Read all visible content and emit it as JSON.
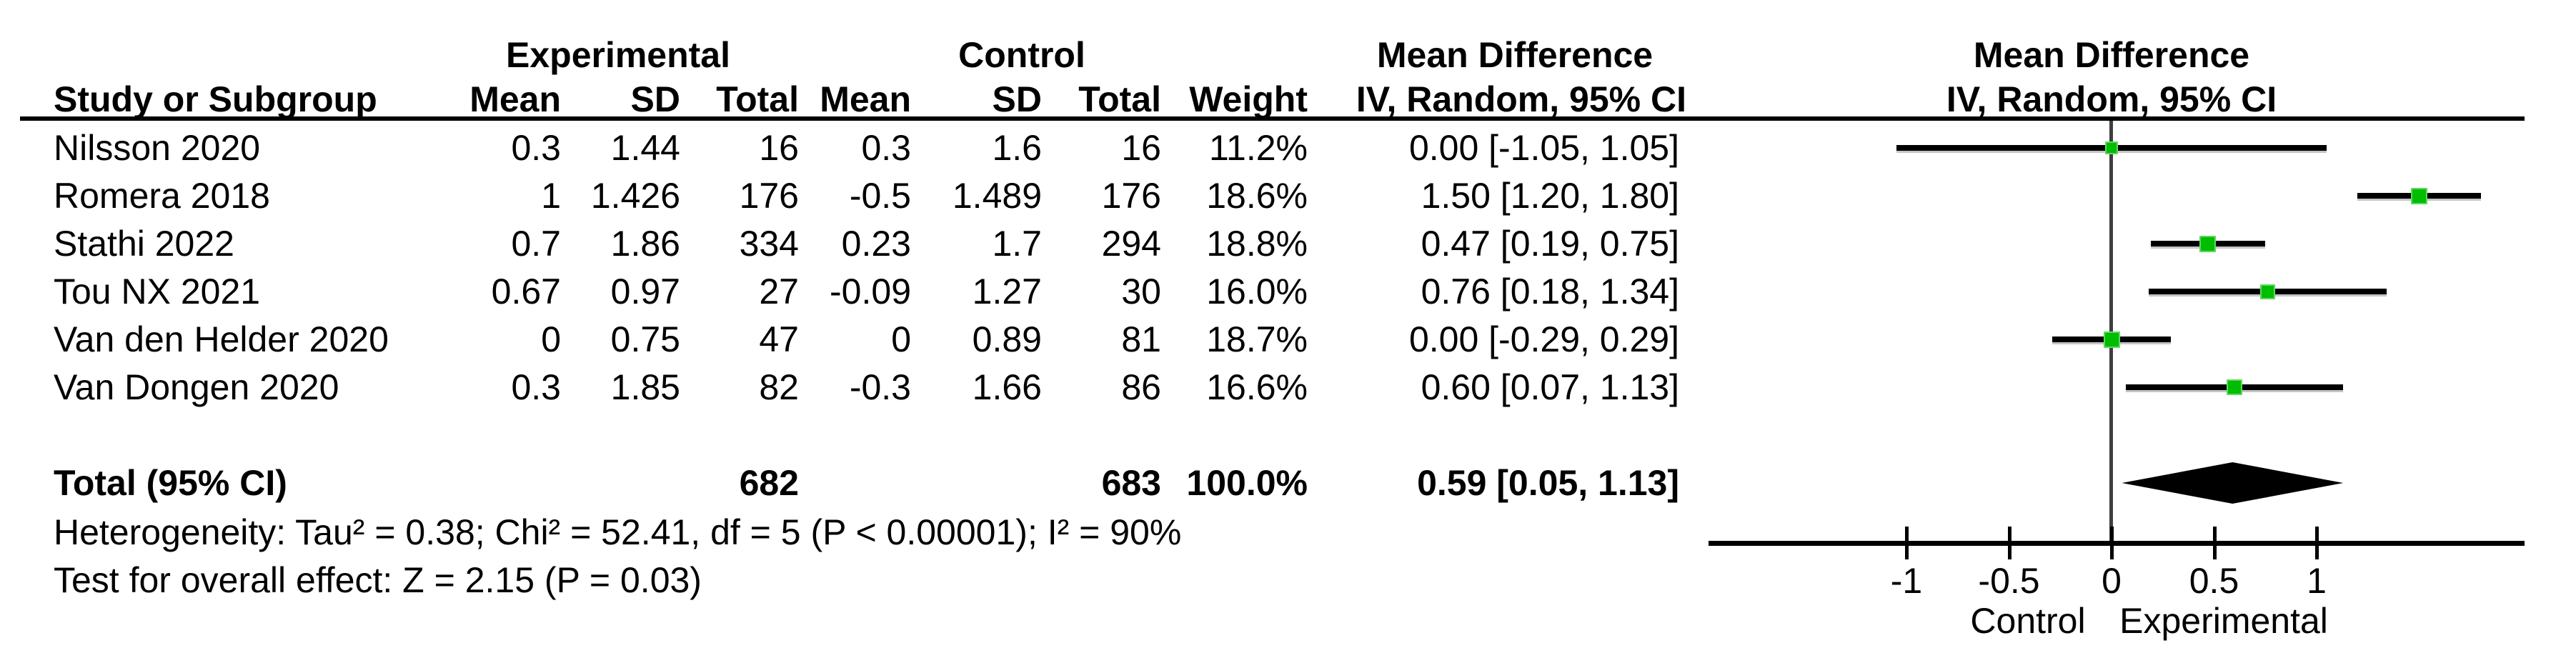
{
  "figure": {
    "group_headers": {
      "experimental": "Experimental",
      "control": "Control",
      "mean_difference": "Mean Difference"
    },
    "plot_header": {
      "line1": "Mean Difference",
      "line2": "IV, Random, 95% CI"
    },
    "columns": {
      "study": "Study or Subgroup",
      "mean": "Mean",
      "sd": "SD",
      "total": "Total",
      "weight": "Weight",
      "ci": "IV, Random, 95% CI"
    },
    "rows": [
      {
        "study": "Nilsson 2020",
        "exp_mean": "0.3",
        "exp_sd": "1.44",
        "exp_total": "16",
        "ctl_mean": "0.3",
        "ctl_sd": "1.6",
        "ctl_total": "16",
        "weight": "11.2%",
        "ci_text": "0.00 [-1.05, 1.05]"
      },
      {
        "study": "Romera 2018",
        "exp_mean": "1",
        "exp_sd": "1.426",
        "exp_total": "176",
        "ctl_mean": "-0.5",
        "ctl_sd": "1.489",
        "ctl_total": "176",
        "weight": "18.6%",
        "ci_text": "1.50 [1.20, 1.80]"
      },
      {
        "study": "Stathi 2022",
        "exp_mean": "0.7",
        "exp_sd": "1.86",
        "exp_total": "334",
        "ctl_mean": "0.23",
        "ctl_sd": "1.7",
        "ctl_total": "294",
        "weight": "18.8%",
        "ci_text": "0.47 [0.19, 0.75]"
      },
      {
        "study": "Tou NX 2021",
        "exp_mean": "0.67",
        "exp_sd": "0.97",
        "exp_total": "27",
        "ctl_mean": "-0.09",
        "ctl_sd": "1.27",
        "ctl_total": "30",
        "weight": "16.0%",
        "ci_text": "0.76 [0.18, 1.34]"
      },
      {
        "study": "Van den Helder 2020",
        "exp_mean": "0",
        "exp_sd": "0.75",
        "exp_total": "47",
        "ctl_mean": "0",
        "ctl_sd": "0.89",
        "ctl_total": "81",
        "weight": "18.7%",
        "ci_text": "0.00 [-0.29, 0.29]"
      },
      {
        "study": "Van Dongen 2020",
        "exp_mean": "0.3",
        "exp_sd": "1.85",
        "exp_total": "82",
        "ctl_mean": "-0.3",
        "ctl_sd": "1.66",
        "ctl_total": "86",
        "weight": "16.6%",
        "ci_text": "0.60 [0.07, 1.13]"
      }
    ],
    "total_row": {
      "label": "Total (95% CI)",
      "exp_total": "682",
      "ctl_total": "683",
      "weight": "100.0%",
      "ci_text": "0.59 [0.05, 1.13]"
    },
    "footnotes": {
      "heterogeneity": "Heterogeneity: Tau² = 0.38; Chi² = 52.41, df = 5 (P < 0.00001); I² = 90%",
      "overall_effect": "Test for overall effect: Z = 2.15 (P = 0.03)"
    },
    "axis": {
      "tick_labels": [
        "-1",
        "-0.5",
        "0",
        "0.5",
        "1"
      ],
      "label_left": "Control",
      "label_right": "Experimental"
    },
    "colors": {
      "marker_green": "#00bd00",
      "marker_border": "#63d663",
      "ci_black": "#000000",
      "zero_line_gray": "#3f3f3f",
      "diamond_black": "#000000"
    }
  },
  "chart_data": {
    "type": "scatter",
    "subtype": "forest_plot",
    "title": "Mean Difference — IV, Random, 95% CI",
    "studies": [
      "Nilsson 2020",
      "Romera 2018",
      "Stathi 2022",
      "Tou NX 2021",
      "Van den Helder 2020",
      "Van Dongen 2020"
    ],
    "md": [
      0.0,
      1.5,
      0.47,
      0.76,
      0.0,
      0.6
    ],
    "ci_low": [
      -1.05,
      1.2,
      0.19,
      0.18,
      -0.29,
      0.07
    ],
    "ci_high": [
      1.05,
      1.8,
      0.75,
      1.34,
      0.29,
      1.13
    ],
    "weights_pct": [
      11.2,
      18.6,
      18.8,
      16.0,
      18.7,
      16.6
    ],
    "experimental": {
      "mean": [
        0.3,
        1,
        0.7,
        0.67,
        0,
        0.3
      ],
      "sd": [
        1.44,
        1.426,
        1.86,
        0.97,
        0.75,
        1.85
      ],
      "total": [
        16,
        176,
        334,
        27,
        47,
        82
      ],
      "total_sum": 682
    },
    "control": {
      "mean": [
        0.3,
        -0.5,
        0.23,
        -0.09,
        0,
        -0.3
      ],
      "sd": [
        1.6,
        1.489,
        1.7,
        1.27,
        0.89,
        1.66
      ],
      "total": [
        16,
        176,
        294,
        30,
        81,
        86
      ],
      "total_sum": 683
    },
    "pooled": {
      "md": 0.59,
      "ci_low": 0.05,
      "ci_high": 1.13,
      "weight_pct": 100.0
    },
    "heterogeneity": {
      "tau2": 0.38,
      "chi2": 52.41,
      "df": 5,
      "p": "< 0.00001",
      "i2_pct": 90
    },
    "overall_effect": {
      "z": 2.15,
      "p": 0.03
    },
    "xlim": [
      -1.97,
      2.01
    ],
    "xticks": [
      -1,
      -0.5,
      0,
      0.5,
      1
    ],
    "xlabel_left": "Control",
    "xlabel_right": "Experimental",
    "grid": false,
    "legend_position": "none"
  }
}
